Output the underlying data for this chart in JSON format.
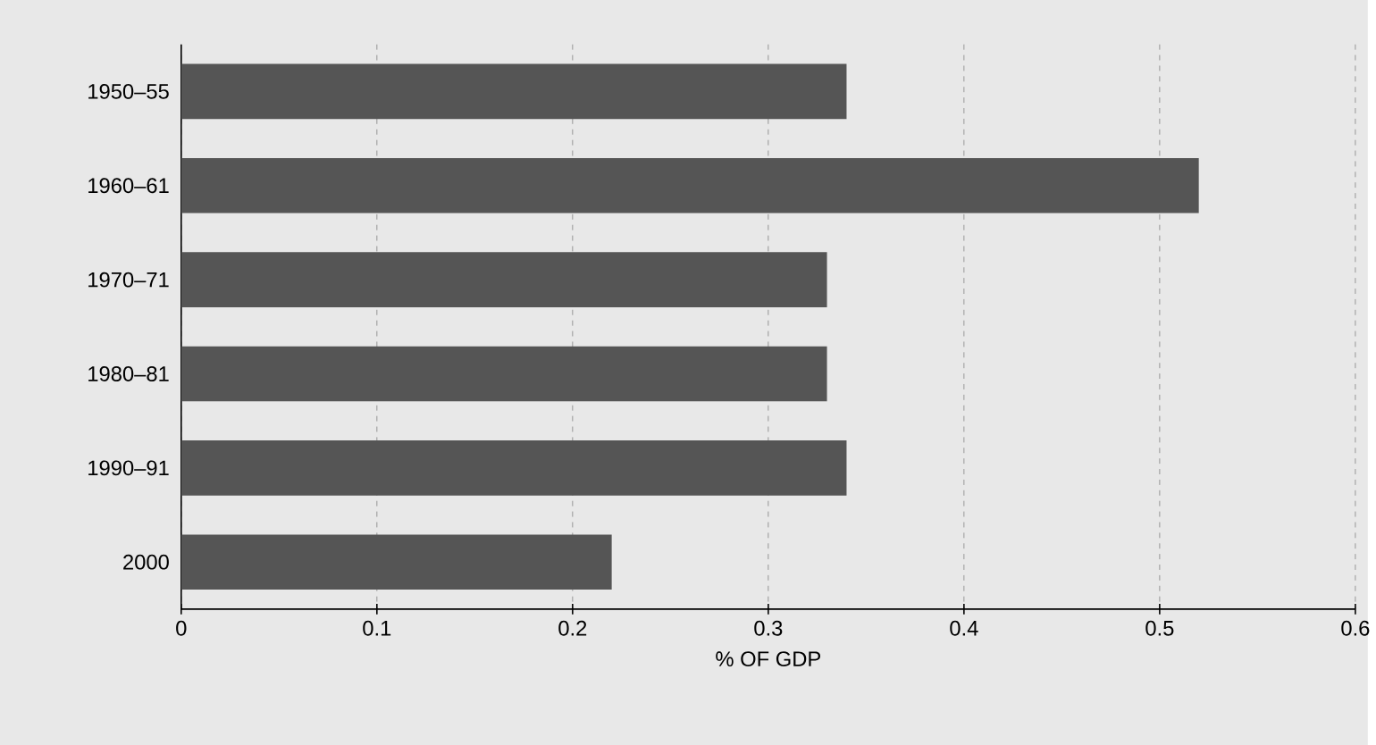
{
  "chart_data": {
    "type": "bar",
    "orientation": "horizontal",
    "xlabel": "% OF GDP",
    "categories": [
      "1950–55",
      "1960–61",
      "1970–71",
      "1980–81",
      "1990–91",
      "2000"
    ],
    "values": [
      0.34,
      0.52,
      0.33,
      0.33,
      0.34,
      0.22
    ],
    "color": "#555555",
    "xlim": [
      0,
      0.6
    ],
    "xticks": [
      0,
      0.1,
      0.2,
      0.3,
      0.4,
      0.5,
      0.6
    ],
    "grid": "x"
  }
}
